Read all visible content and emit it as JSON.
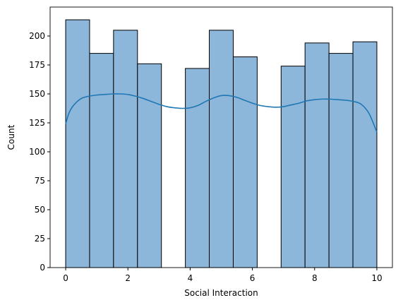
{
  "chart_data": {
    "type": "bar",
    "title": "",
    "xlabel": "Social Interaction",
    "ylabel": "Count",
    "xlim": [
      -0.5,
      10.5
    ],
    "ylim": [
      0,
      225
    ],
    "x_ticks": [
      0,
      2,
      4,
      6,
      8,
      10
    ],
    "y_ticks": [
      0,
      25,
      50,
      75,
      100,
      125,
      150,
      175,
      200
    ],
    "grid": false,
    "bins": [
      {
        "x0": 0.0,
        "x1": 0.769,
        "count": 214
      },
      {
        "x0": 0.769,
        "x1": 1.538,
        "count": 185
      },
      {
        "x0": 1.538,
        "x1": 2.308,
        "count": 205
      },
      {
        "x0": 2.308,
        "x1": 3.077,
        "count": 176
      },
      {
        "x0": 3.077,
        "x1": 3.846,
        "count": 0
      },
      {
        "x0": 3.846,
        "x1": 4.615,
        "count": 172
      },
      {
        "x0": 4.615,
        "x1": 5.385,
        "count": 205
      },
      {
        "x0": 5.385,
        "x1": 6.154,
        "count": 182
      },
      {
        "x0": 6.154,
        "x1": 6.923,
        "count": 0
      },
      {
        "x0": 6.923,
        "x1": 7.692,
        "count": 174
      },
      {
        "x0": 7.692,
        "x1": 8.462,
        "count": 194
      },
      {
        "x0": 8.462,
        "x1": 9.231,
        "count": 185
      },
      {
        "x0": 9.231,
        "x1": 10.0,
        "count": 195
      }
    ],
    "kde": {
      "x": [
        0,
        0.1,
        0.25,
        0.5,
        0.75,
        1.0,
        1.25,
        1.5,
        1.75,
        2.0,
        2.25,
        2.5,
        2.75,
        3.0,
        3.25,
        3.5,
        3.75,
        4.0,
        4.25,
        4.5,
        4.75,
        5.0,
        5.25,
        5.5,
        5.75,
        6.0,
        6.25,
        6.5,
        6.75,
        7.0,
        7.25,
        7.5,
        7.75,
        8.0,
        8.25,
        8.5,
        8.75,
        9.0,
        9.25,
        9.5,
        9.75,
        10.0
      ],
      "y": [
        124,
        133,
        140,
        146,
        148,
        149,
        149.5,
        150,
        150,
        149.5,
        148,
        146,
        143.5,
        141,
        139,
        138,
        137.5,
        138,
        140,
        143.5,
        146.5,
        148.5,
        148.5,
        147,
        144.5,
        142,
        140,
        139,
        138.5,
        139,
        140.5,
        142,
        144,
        145,
        145.5,
        145.5,
        145,
        144.5,
        143.5,
        141,
        133,
        117
      ]
    },
    "colors": {
      "bar_fill": "#8db7da",
      "bar_edge": "#000000",
      "kde_line": "#1f77b4",
      "axis": "#000000"
    }
  }
}
